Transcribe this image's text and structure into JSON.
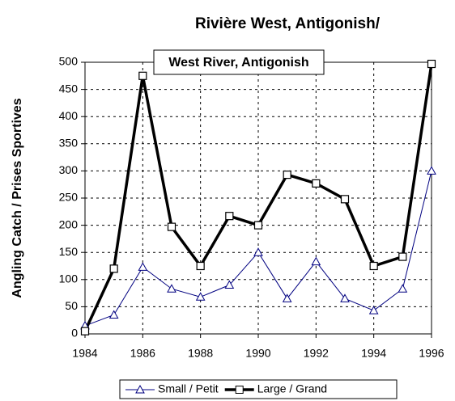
{
  "chart_data": {
    "type": "line",
    "title": "Rivière West, Antigonish/",
    "subtitle": "West River, Antigonish",
    "y_label": "Angling Catch / Prises Sportives",
    "x": [
      1984,
      1985,
      1986,
      1987,
      1988,
      1989,
      1990,
      1991,
      1992,
      1993,
      1994,
      1995,
      1996
    ],
    "xlim": [
      1984,
      1996
    ],
    "xticks": [
      1984,
      1986,
      1988,
      1990,
      1992,
      1994,
      1996
    ],
    "ylim": [
      0,
      500
    ],
    "yticks": [
      0,
      50,
      100,
      150,
      200,
      250,
      300,
      350,
      400,
      450,
      500
    ],
    "grid": true,
    "legend": "bottom",
    "series": [
      {
        "name": "Small / Petit",
        "color": "#000080",
        "marker": "triangle",
        "values": [
          15,
          35,
          123,
          83,
          68,
          90,
          150,
          65,
          133,
          65,
          43,
          83,
          300
        ]
      },
      {
        "name": "Large / Grand",
        "color": "#000000",
        "marker": "square",
        "values": [
          5,
          120,
          475,
          197,
          125,
          217,
          200,
          293,
          277,
          248,
          125,
          142,
          497
        ]
      }
    ]
  }
}
